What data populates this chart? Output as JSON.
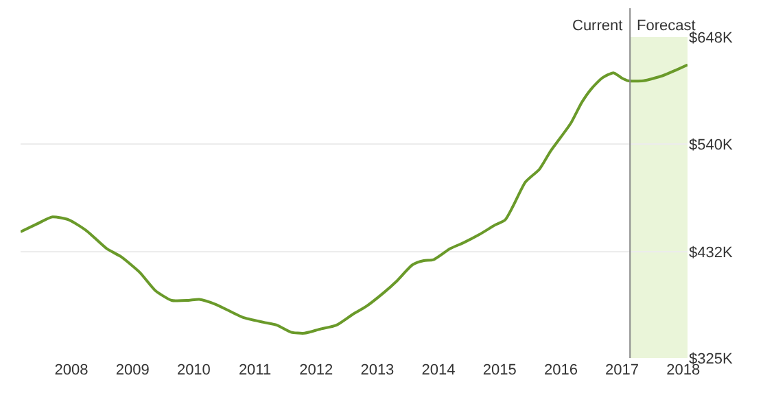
{
  "chart_data": {
    "type": "line",
    "x": [
      2007.17,
      2007.44,
      2007.69,
      2007.96,
      2008.25,
      2008.58,
      2008.81,
      2009.12,
      2009.37,
      2009.64,
      2009.91,
      2010.09,
      2010.36,
      2010.8,
      2011.14,
      2011.36,
      2011.59,
      2011.81,
      2012.06,
      2012.33,
      2012.6,
      2012.82,
      2013.11,
      2013.31,
      2013.58,
      2013.76,
      2013.92,
      2014.19,
      2014.41,
      2014.66,
      2014.93,
      2015.09,
      2015.22,
      2015.42,
      2015.65,
      2015.83,
      2016.16,
      2016.34,
      2016.5,
      2016.68,
      2016.86,
      2016.99,
      2017.1,
      2017.35,
      2017.66,
      2017.89,
      2018.07
    ],
    "series": [
      {
        "color": "#6a9a2a",
        "values": [
          452,
          460,
          467,
          464,
          453,
          435,
          427,
          411,
          393,
          383,
          383,
          384,
          379,
          366,
          361,
          358,
          351,
          350,
          354,
          358,
          369,
          377,
          391,
          402,
          419,
          423,
          424,
          435,
          441,
          449,
          459,
          464,
          478,
          502,
          515,
          533,
          561,
          582,
          596,
          607,
          612,
          607,
          604,
          604,
          609,
          615,
          620
        ]
      }
    ],
    "xlim": [
      2007.17,
      2018.07
    ],
    "xticks": [
      2008,
      2009,
      2010,
      2011,
      2012,
      2013,
      2014,
      2015,
      2016,
      2017,
      2018
    ],
    "ylim": [
      325,
      648
    ],
    "yticks": [
      {
        "value": 325,
        "label": "$325K"
      },
      {
        "value": 432,
        "label": "$432K"
      },
      {
        "value": 540,
        "label": "$540K"
      },
      {
        "value": 648,
        "label": "$648K"
      }
    ],
    "grid": "y",
    "marker": "none",
    "line_style": "solid",
    "ref_lines": [
      {
        "axis": "x",
        "value": 2017.13,
        "label": "Current",
        "color": "#8a8a8a"
      }
    ],
    "bands": [
      {
        "axis": "x",
        "from": 2017.13,
        "to": 2018.07,
        "label": "Forecast",
        "color": "#eaf5d9"
      }
    ]
  }
}
